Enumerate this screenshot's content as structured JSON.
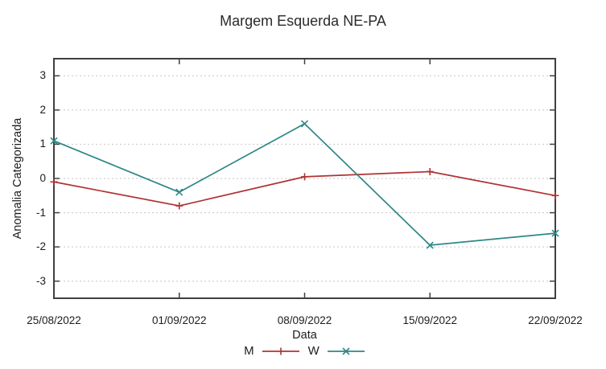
{
  "chart_data": {
    "type": "line",
    "title": "Margem Esquerda NE-PA",
    "xlabel": "Data",
    "ylabel": "Anomalia Categorizada",
    "categories": [
      "25/08/2022",
      "01/09/2022",
      "08/09/2022",
      "15/09/2022",
      "22/09/2022"
    ],
    "series": [
      {
        "name": "M",
        "marker": "plus",
        "color": "#b03232",
        "values": [
          -0.1,
          -0.8,
          0.05,
          0.2,
          -0.5
        ]
      },
      {
        "name": "W",
        "marker": "cross",
        "color": "#2e8787",
        "values": [
          1.1,
          -0.4,
          1.6,
          -1.95,
          -1.6
        ]
      }
    ],
    "ylim": [
      -3.5,
      3.5
    ],
    "yticks": [
      -3,
      -2,
      -1,
      0,
      1,
      2,
      3
    ],
    "grid": true,
    "grid_style": "dotted",
    "legend_position": "bottom-center",
    "colors": {
      "frame": "#404040",
      "grid": "#c6c6c6",
      "text": "#1c1c1c"
    }
  }
}
